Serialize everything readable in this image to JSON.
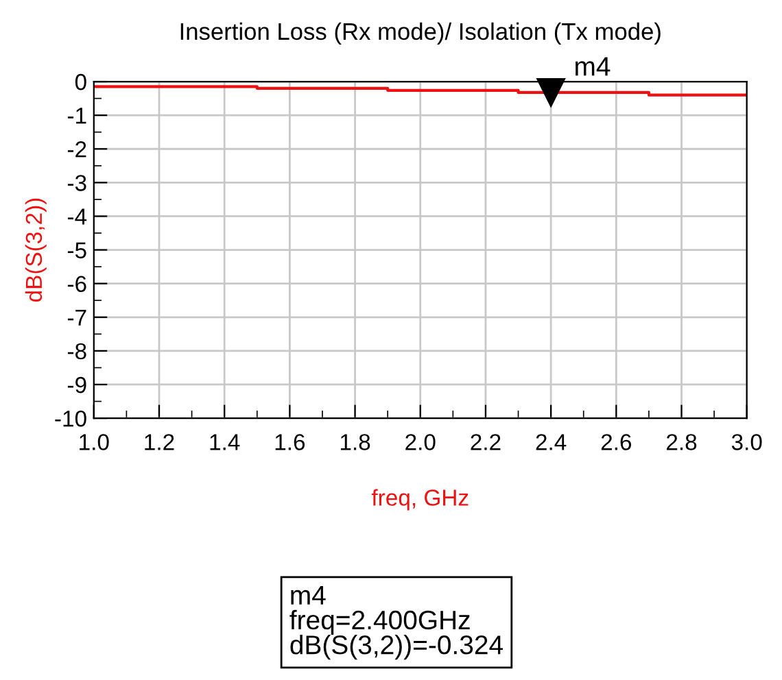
{
  "chart_data": {
    "type": "step",
    "title": "Insertion Loss (Rx mode)/ Isolation (Tx mode)",
    "xlabel": "freq, GHz",
    "ylabel": "dB(S(3,2))",
    "x": [
      1.0,
      1.5,
      1.9,
      2.3,
      2.7,
      3.0
    ],
    "series": [
      {
        "color": "#ee1111",
        "values": [
          -0.15,
          -0.2,
          -0.26,
          -0.324,
          -0.4,
          -0.4
        ]
      }
    ],
    "xlim": [
      1.0,
      3.0
    ],
    "xticks": [
      {
        "value": 1.0,
        "label": "1.0"
      },
      {
        "value": 1.2,
        "label": "1.2"
      },
      {
        "value": 1.4,
        "label": "1.4"
      },
      {
        "value": 1.6,
        "label": "1.6"
      },
      {
        "value": 1.8,
        "label": "1.8"
      },
      {
        "value": 2.0,
        "label": "2.0"
      },
      {
        "value": 2.2,
        "label": "2.2"
      },
      {
        "value": 2.4,
        "label": "2.4"
      },
      {
        "value": 2.6,
        "label": "2.6"
      },
      {
        "value": 2.8,
        "label": "2.8"
      },
      {
        "value": 3.0,
        "label": "3.0"
      }
    ],
    "ylim": [
      -10,
      0
    ],
    "yticks": [
      -10,
      -9,
      -8,
      -7,
      -6,
      -5,
      -4,
      -3,
      -2,
      -1,
      0
    ],
    "grid": true,
    "annotations": [
      {
        "text": "m4",
        "x": 2.4,
        "y": -0.324
      },
      "m4\nfreq=2.400GHz\ndB(S(3,2))=-0.324"
    ]
  }
}
